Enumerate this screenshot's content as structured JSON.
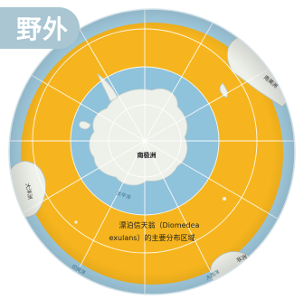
{
  "header": {
    "tab_text": "野外"
  },
  "map": {
    "labels": {
      "antarctica": "南极洲",
      "south_america": "南美洲",
      "oceania": "大洋洲",
      "pacific": "太平洋",
      "africa": "非洲",
      "indian_ocean": "印度洋",
      "atlantic": "大西洋"
    },
    "legend_line1": "漂泊信天翁（Diomedea",
    "legend_line2": "exulans）的主要分布区域"
  },
  "colors": {
    "ocean": "#a4cfe3",
    "inner_ocean": "#8fc2db",
    "range": "#f6b51e",
    "land": "#eef0ea",
    "grid": "#ffffff",
    "tab": "#a9c6d2"
  }
}
